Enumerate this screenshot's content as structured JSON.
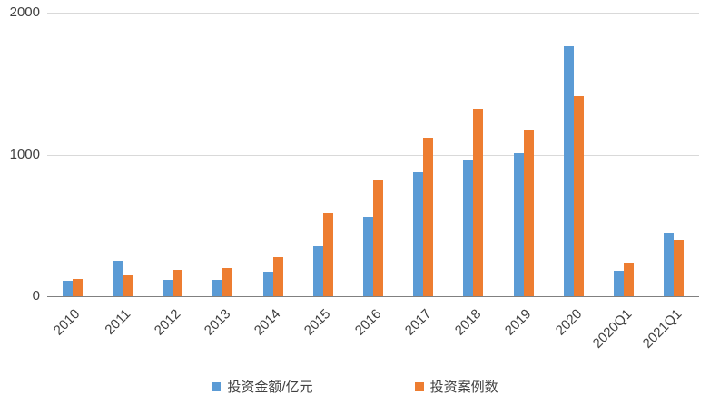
{
  "chart_data": {
    "type": "bar",
    "title": "",
    "xlabel": "",
    "ylabel": "",
    "ylim": [
      0,
      2000
    ],
    "yticks": [
      0,
      1000,
      2000
    ],
    "grid": true,
    "legend_position": "bottom",
    "categories": [
      "2010",
      "2011",
      "2012",
      "2013",
      "2014",
      "2015",
      "2016",
      "2017",
      "2018",
      "2019",
      "2020",
      "2020Q1",
      "2021Q1"
    ],
    "series": [
      {
        "name": "投资金额/亿元",
        "color": "#5B9BD5",
        "values": [
          110,
          250,
          115,
          115,
          170,
          355,
          555,
          875,
          960,
          1010,
          1765,
          180,
          445
        ]
      },
      {
        "name": "投资案例数",
        "color": "#ED7D31",
        "values": [
          120,
          145,
          185,
          200,
          275,
          590,
          820,
          1120,
          1320,
          1170,
          1415,
          235,
          395
        ]
      }
    ]
  }
}
